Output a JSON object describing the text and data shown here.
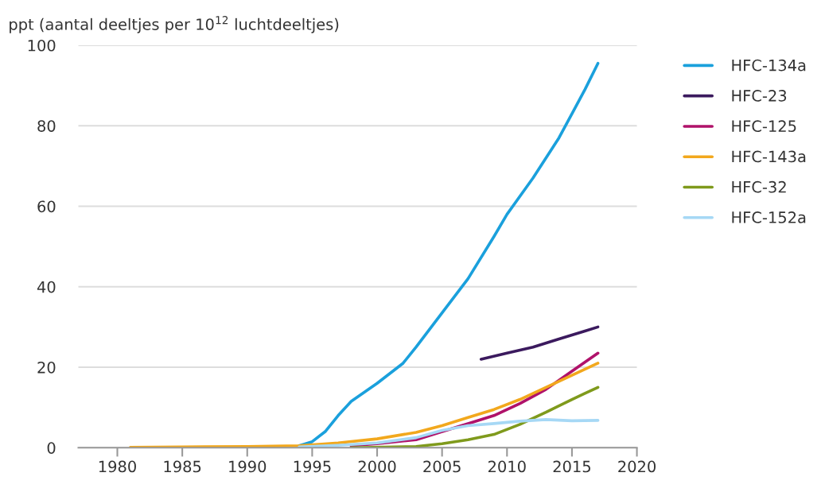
{
  "chart_data": {
    "type": "line",
    "ylabel": "ppt (aantal deeltjes per 10$^{12}$ luchtdeeltjes)",
    "xlim": [
      1977,
      2020
    ],
    "xticks": [
      1980,
      1985,
      1990,
      1995,
      2000,
      2005,
      2010,
      2015,
      2020
    ],
    "ylim": [
      0,
      100
    ],
    "yticks": [
      0,
      20,
      40,
      60,
      80,
      100
    ],
    "grid": "y",
    "legend": "right",
    "marker": "none",
    "line_style": "solid",
    "series": [
      {
        "name": "HFC-134a",
        "color": "#1aa0dc",
        "x": [
          1994,
          1995,
          1996,
          1997,
          1998,
          2000,
          2002,
          2003,
          2005,
          2007,
          2009,
          2010,
          2012,
          2014,
          2015,
          2016,
          2017
        ],
        "values": [
          0.5,
          1.5,
          4,
          8,
          11.5,
          16,
          21,
          25,
          33.5,
          42,
          52.5,
          58,
          67,
          77,
          83,
          89,
          95.5
        ]
      },
      {
        "name": "HFC-23",
        "color": "#3b1a5e",
        "x": [
          2008,
          2010,
          2012,
          2014,
          2016,
          2017
        ],
        "values": [
          22,
          23.5,
          25,
          27,
          29,
          30
        ]
      },
      {
        "name": "HFC-125",
        "color": "#b0126a",
        "x": [
          1998,
          2000,
          2003,
          2005,
          2007,
          2009,
          2011,
          2013,
          2015,
          2017
        ],
        "values": [
          0.5,
          1,
          2,
          4,
          6,
          8,
          11,
          14.5,
          19,
          23.5
        ]
      },
      {
        "name": "HFC-143a",
        "color": "#f2a81d",
        "x": [
          1981,
          1985,
          1990,
          1994,
          1997,
          2000,
          2003,
          2005,
          2007,
          2009,
          2011,
          2013,
          2015,
          2017
        ],
        "values": [
          0.1,
          0.2,
          0.3,
          0.5,
          1.2,
          2.2,
          3.8,
          5.5,
          7.5,
          9.5,
          12,
          15,
          18,
          21
        ]
      },
      {
        "name": "HFC-32",
        "color": "#7f9a1c",
        "x": [
          1998,
          2003,
          2005,
          2007,
          2009,
          2011,
          2013,
          2015,
          2016,
          2017
        ],
        "values": [
          0,
          0.3,
          1,
          2,
          3.3,
          5.8,
          8.8,
          12,
          13.5,
          15
        ]
      },
      {
        "name": "HFC-152a",
        "color": "#a6d8f5",
        "x": [
          1994,
          1997,
          2000,
          2003,
          2005,
          2007,
          2009,
          2011,
          2013,
          2015,
          2017
        ],
        "values": [
          0.2,
          0.6,
          1.2,
          2.5,
          4.3,
          5.5,
          6,
          6.6,
          7,
          6.7,
          6.8
        ]
      }
    ]
  }
}
